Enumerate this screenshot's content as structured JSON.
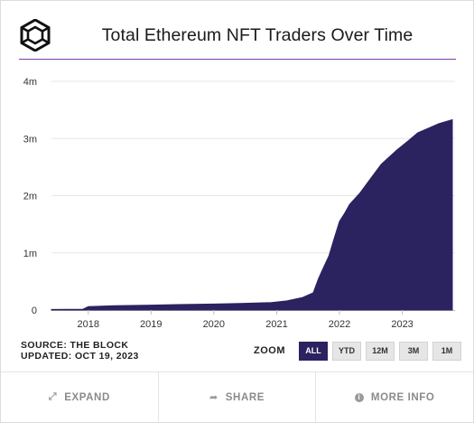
{
  "header": {
    "title": "Total Ethereum NFT Traders Over Time",
    "logo_icon": "the-block-cube-logo"
  },
  "chart_data": {
    "type": "area",
    "title": "Total Ethereum NFT Traders Over Time",
    "xlabel": "",
    "ylabel": "",
    "ylim": [
      0,
      4000000
    ],
    "xlim": [
      "2017-06-01",
      "2023-10-19"
    ],
    "y_ticks": [
      {
        "value": 0,
        "label": "0"
      },
      {
        "value": 1000000,
        "label": "1m"
      },
      {
        "value": 2000000,
        "label": "2m"
      },
      {
        "value": 3000000,
        "label": "3m"
      },
      {
        "value": 4000000,
        "label": "4m"
      }
    ],
    "x_ticks": [
      {
        "value": "2018-01-01",
        "label": "2018"
      },
      {
        "value": "2019-01-01",
        "label": "2019"
      },
      {
        "value": "2020-01-01",
        "label": "2020"
      },
      {
        "value": "2021-01-01",
        "label": "2021"
      },
      {
        "value": "2022-01-01",
        "label": "2022"
      },
      {
        "value": "2023-01-01",
        "label": "2023"
      }
    ],
    "grid": true,
    "fill_color": "#2b2260",
    "series": [
      {
        "x": [
          "2017-06-01",
          "2017-12-01",
          "2018-01-01",
          "2018-06-01",
          "2019-01-01",
          "2019-06-01",
          "2020-01-01",
          "2020-06-01",
          "2020-12-01",
          "2021-01-01",
          "2021-03-01",
          "2021-06-01",
          "2021-08-01",
          "2021-09-01",
          "2021-10-01",
          "2021-11-01",
          "2021-12-01",
          "2022-01-01",
          "2022-02-01",
          "2022-03-01",
          "2022-05-01",
          "2022-07-01",
          "2022-09-01",
          "2022-12-01",
          "2023-02-01",
          "2023-04-01",
          "2023-06-01",
          "2023-08-01",
          "2023-10-19"
        ],
        "values": [
          10000,
          15000,
          60000,
          75000,
          85000,
          95000,
          105000,
          115000,
          130000,
          140000,
          160000,
          220000,
          300000,
          550000,
          750000,
          950000,
          1250000,
          1550000,
          1700000,
          1850000,
          2050000,
          2300000,
          2550000,
          2800000,
          2950000,
          3100000,
          3180000,
          3260000,
          3330000
        ]
      }
    ]
  },
  "footer": {
    "source": "SOURCE: THE BLOCK",
    "updated": "UPDATED: OCT 19, 2023"
  },
  "zoom": {
    "label": "ZOOM",
    "options": [
      "ALL",
      "YTD",
      "12M",
      "3M",
      "1M"
    ],
    "selected": "ALL"
  },
  "actions": {
    "expand": {
      "label": "EXPAND",
      "icon": "expand-arrows-icon"
    },
    "share": {
      "label": "SHARE",
      "icon": "share-arrow-icon"
    },
    "more_info": {
      "label": "MORE INFO",
      "icon": "info-circle-icon"
    }
  }
}
